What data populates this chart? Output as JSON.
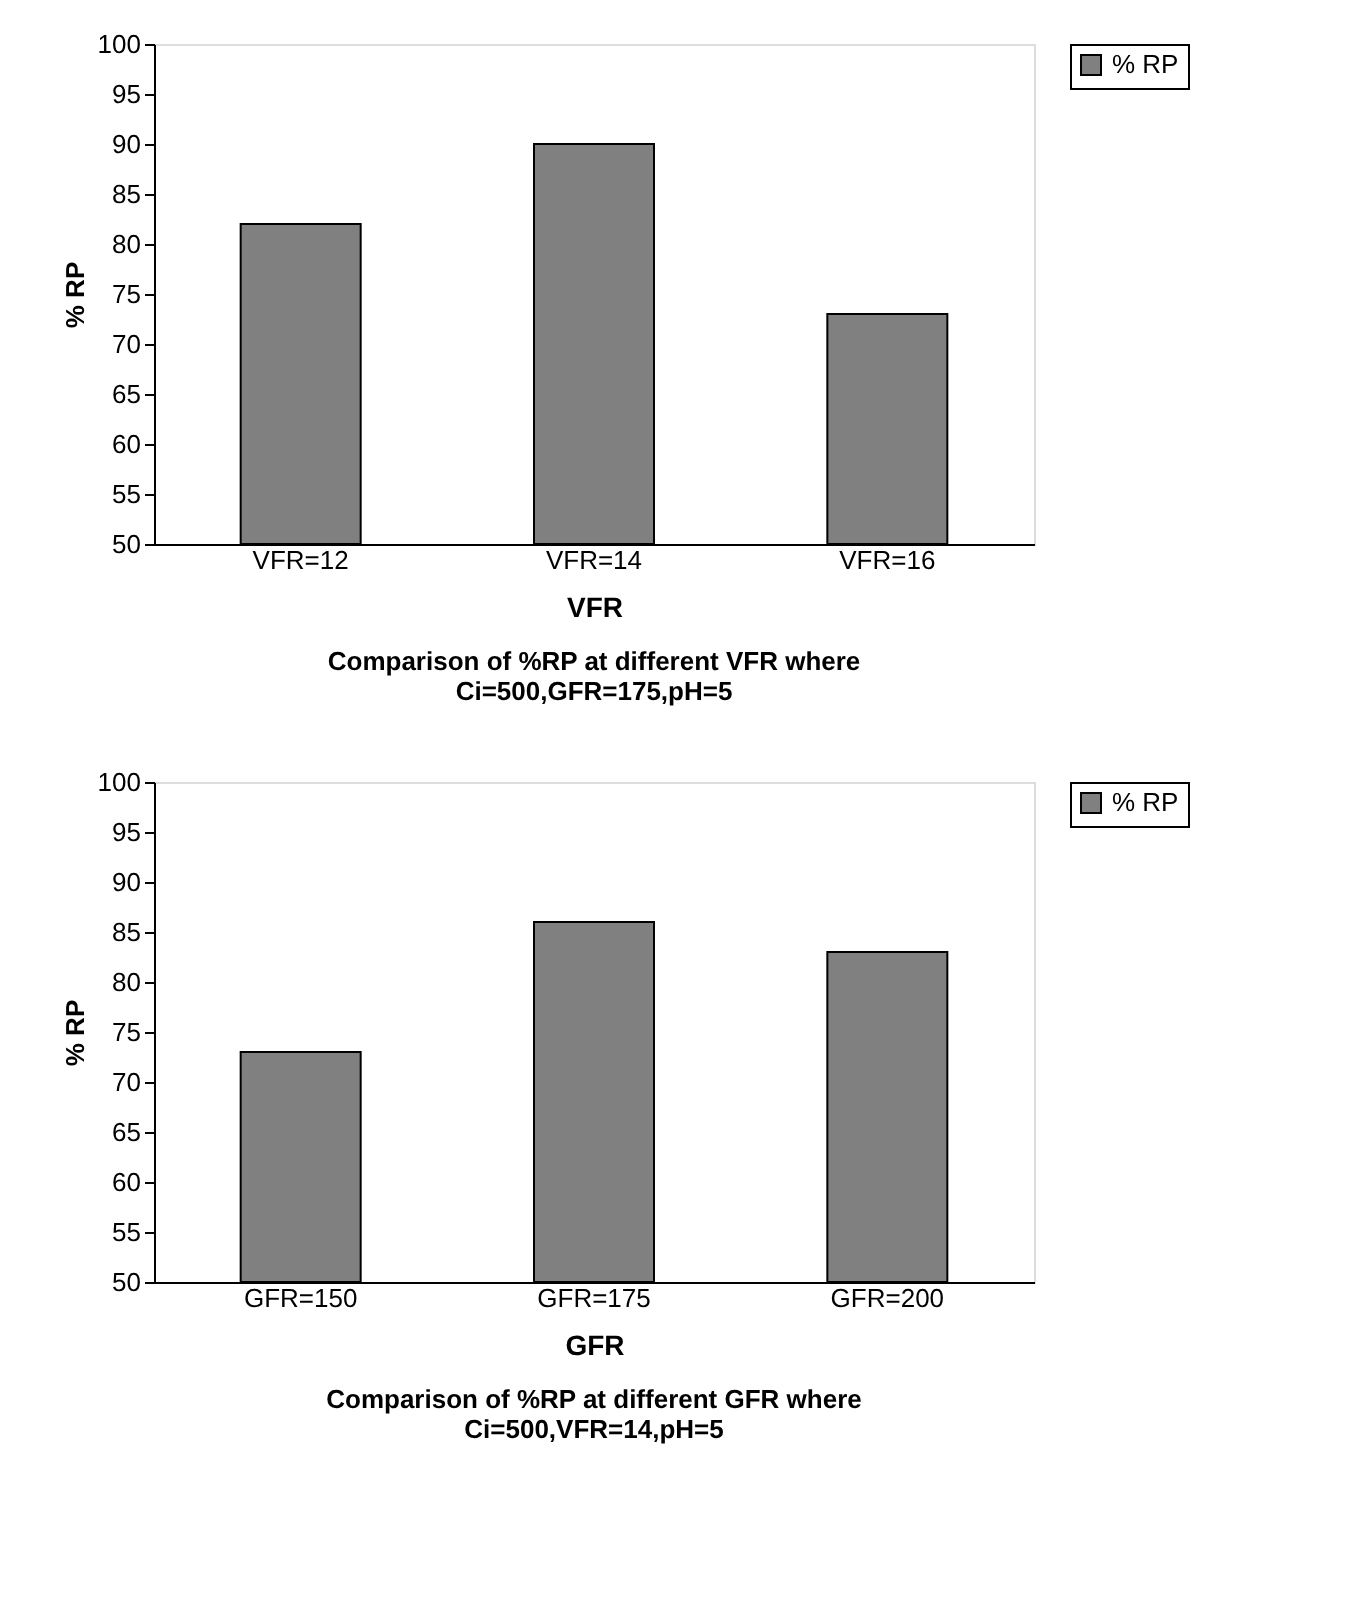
{
  "chart_data": [
    {
      "type": "bar",
      "title": "Comparison of %RP at different VFR where\nCi=500,GFR=175,pH=5",
      "xlabel": "VFR",
      "ylabel": "% RP",
      "categories": [
        "VFR=12",
        "VFR=14",
        "VFR=16"
      ],
      "series": [
        {
          "name": "% RP",
          "color": "#808080",
          "values": [
            82,
            90,
            73
          ]
        }
      ],
      "ylim": [
        50,
        100
      ],
      "yticks": [
        50,
        55,
        60,
        65,
        70,
        75,
        80,
        85,
        90,
        95,
        100
      ],
      "grid": false,
      "legend": "right"
    },
    {
      "type": "bar",
      "title": "Comparison of %RP at different GFR where\nCi=500,VFR=14,pH=5",
      "xlabel": "GFR",
      "ylabel": "% RP",
      "categories": [
        "GFR=150",
        "GFR=175",
        "GFR=200"
      ],
      "series": [
        {
          "name": "% RP",
          "color": "#808080",
          "values": [
            73,
            86,
            83
          ]
        }
      ],
      "ylim": [
        50,
        100
      ],
      "yticks": [
        50,
        55,
        60,
        65,
        70,
        75,
        80,
        85,
        90,
        95,
        100
      ],
      "grid": false,
      "legend": "right"
    }
  ]
}
